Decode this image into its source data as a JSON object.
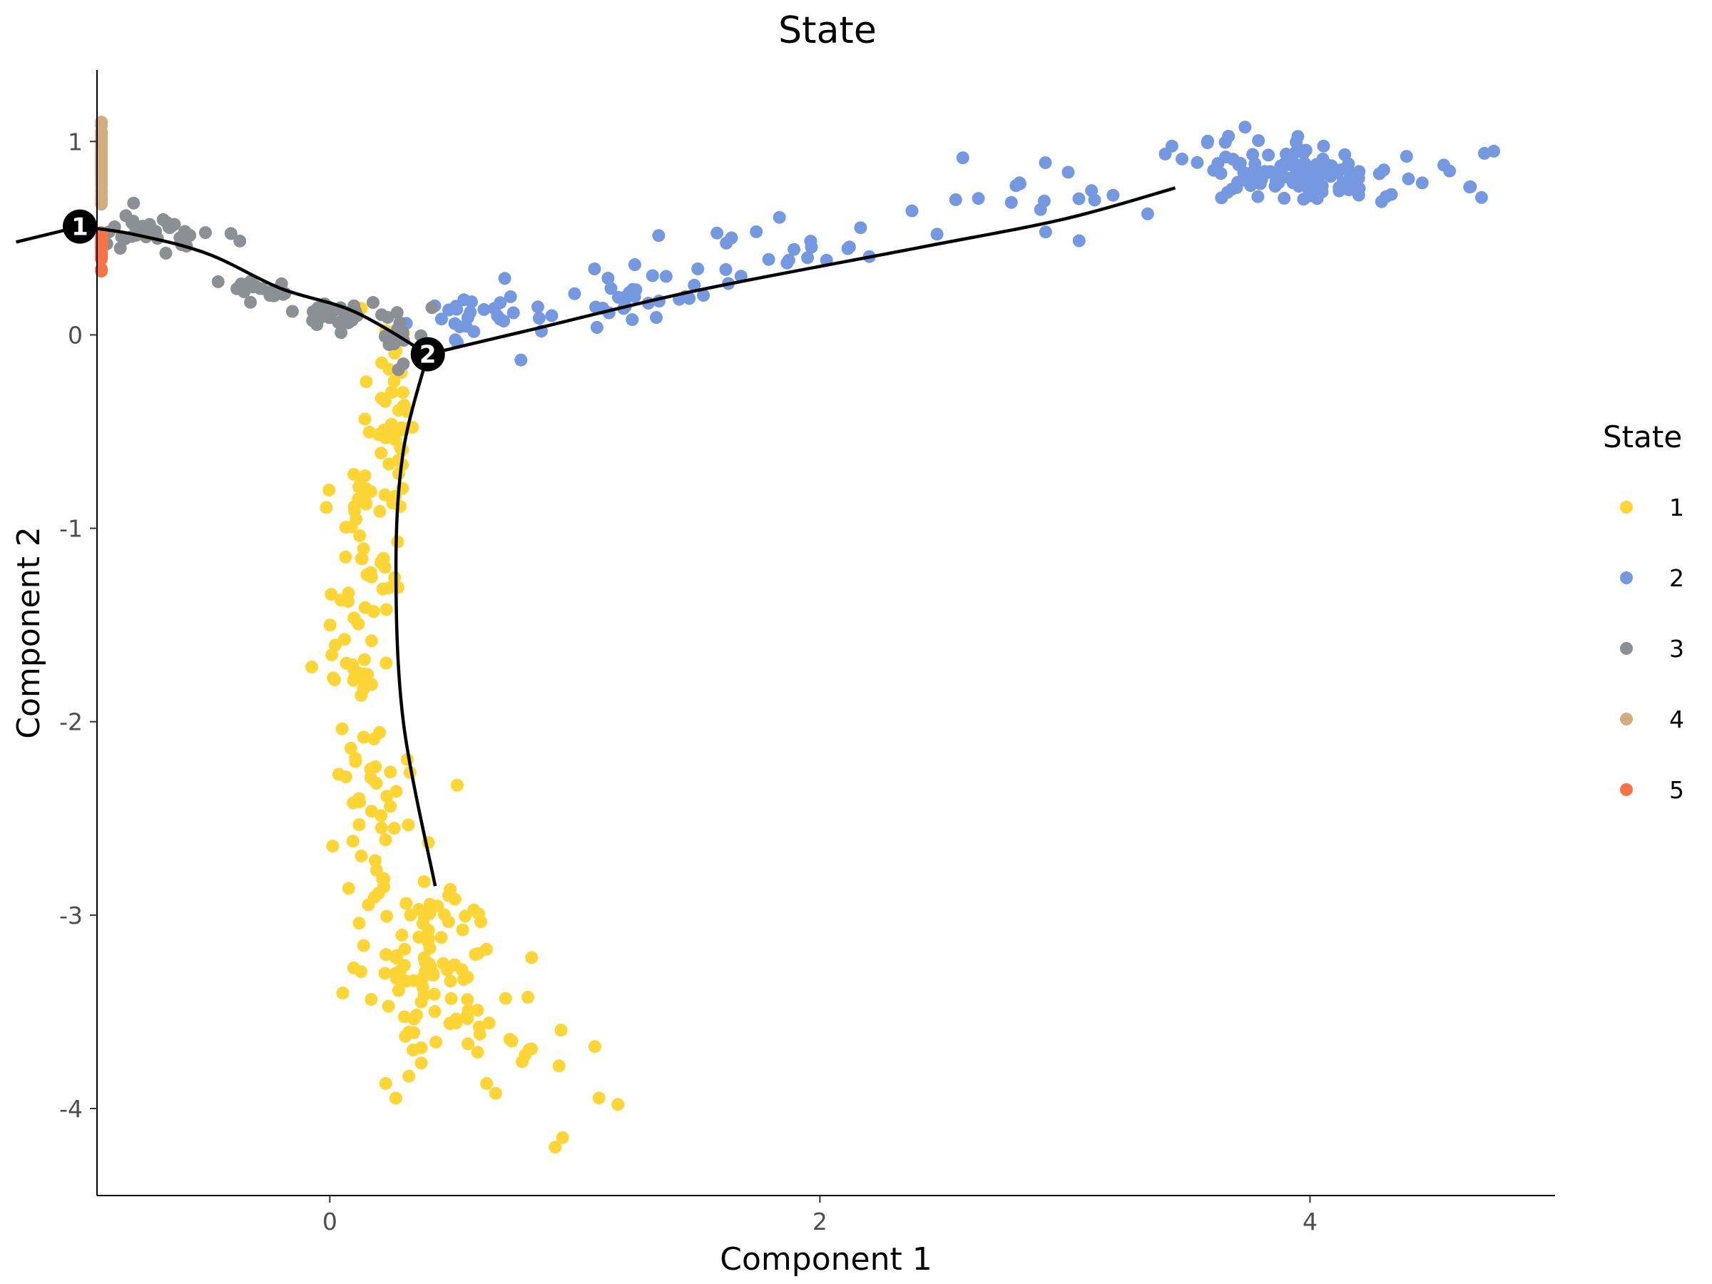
{
  "chart_data": {
    "type": "scatter",
    "title": "State",
    "xlabel": "Component 1",
    "ylabel": "Component 2",
    "xlim": [
      -0.95,
      5.0
    ],
    "ylim": [
      -4.45,
      1.37
    ],
    "x_ticks": [
      0,
      2,
      4
    ],
    "y_ticks": [
      1,
      0,
      -1,
      -2,
      -3,
      -4
    ],
    "grid": false,
    "legend": {
      "title": "State",
      "placement": "right"
    },
    "series": [
      {
        "name": "1",
        "color": "#FDD535",
        "clusters": [
          {
            "cx": 0.25,
            "cy": -0.35,
            "sx": 0.05,
            "sy": 0.25,
            "n": 40
          },
          {
            "cx": 0.15,
            "cy": -1.0,
            "sx": 0.07,
            "sy": 0.3,
            "n": 45
          },
          {
            "cx": 0.1,
            "cy": -1.8,
            "sx": 0.08,
            "sy": 0.35,
            "n": 40
          },
          {
            "cx": 0.23,
            "cy": -2.6,
            "sx": 0.09,
            "sy": 0.35,
            "n": 35
          },
          {
            "cx": 0.42,
            "cy": -3.3,
            "sx": 0.13,
            "sy": 0.25,
            "n": 90
          },
          {
            "cx": 0.8,
            "cy": -3.55,
            "sx": 0.18,
            "sy": 0.25,
            "n": 20
          }
        ],
        "points": [
          [
            0.92,
            -4.2
          ],
          [
            0.95,
            -4.15
          ]
        ]
      },
      {
        "name": "2",
        "color": "#7499E0",
        "clusters": [
          {
            "cx": 0.6,
            "cy": 0.08,
            "sx": 0.12,
            "sy": 0.06,
            "n": 25
          },
          {
            "cx": 1.2,
            "cy": 0.2,
            "sx": 0.2,
            "sy": 0.12,
            "n": 30
          },
          {
            "cx": 1.8,
            "cy": 0.42,
            "sx": 0.3,
            "sy": 0.1,
            "n": 25
          },
          {
            "cx": 2.8,
            "cy": 0.68,
            "sx": 0.45,
            "sy": 0.09,
            "n": 20
          },
          {
            "cx": 3.95,
            "cy": 0.85,
            "sx": 0.2,
            "sy": 0.08,
            "n": 120
          },
          {
            "cx": 4.45,
            "cy": 0.8,
            "sx": 0.2,
            "sy": 0.08,
            "n": 12
          }
        ],
        "points": [
          [
            0.78,
            -0.13
          ],
          [
            2.92,
            0.89
          ],
          [
            4.75,
            0.95
          ],
          [
            4.7,
            0.71
          ]
        ]
      },
      {
        "name": "3",
        "color": "#8B9095",
        "clusters": [
          {
            "cx": -0.72,
            "cy": 0.53,
            "sx": 0.12,
            "sy": 0.05,
            "n": 40
          },
          {
            "cx": -0.3,
            "cy": 0.23,
            "sx": 0.1,
            "sy": 0.03,
            "n": 20
          },
          {
            "cx": 0.07,
            "cy": 0.11,
            "sx": 0.12,
            "sy": 0.03,
            "n": 30
          },
          {
            "cx": 0.28,
            "cy": 0.01,
            "sx": 0.05,
            "sy": 0.03,
            "n": 12
          }
        ],
        "points": [
          [
            0.3,
            -0.15
          ],
          [
            0.28,
            -0.18
          ]
        ]
      },
      {
        "name": "4",
        "color": "#D4AD7E",
        "clusters": [
          {
            "cx": -1.45,
            "cy": 0.93,
            "sx": 0.08,
            "sy": 0.06,
            "n": 80
          },
          {
            "cx": -1.27,
            "cy": 0.8,
            "sx": 0.07,
            "sy": 0.05,
            "n": 25
          }
        ],
        "points": [
          [
            -1.35,
            1.1
          ],
          [
            -1.4,
            1.1
          ],
          [
            -1.2,
            0.68
          ],
          [
            -1.15,
            0.7
          ]
        ]
      },
      {
        "name": "5",
        "color": "#FB7246",
        "clusters": [
          {
            "cx": -1.42,
            "cy": 0.45,
            "sx": 0.05,
            "sy": 0.03,
            "n": 100
          }
        ],
        "points": [
          [
            -1.45,
            0.33
          ],
          [
            -1.38,
            0.34
          ]
        ]
      }
    ],
    "trajectory": [
      [
        [
          -1.28,
          0.48
        ],
        [
          -1.02,
          0.56
        ]
      ],
      [
        [
          -1.02,
          0.56
        ],
        [
          -0.8,
          0.52
        ],
        [
          -0.5,
          0.42
        ],
        [
          -0.2,
          0.24
        ],
        [
          0.1,
          0.12
        ],
        [
          0.4,
          -0.1
        ]
      ],
      [
        [
          0.4,
          -0.1
        ],
        [
          0.8,
          0.02
        ],
        [
          1.5,
          0.23
        ],
        [
          2.4,
          0.45
        ],
        [
          3.0,
          0.6
        ],
        [
          3.45,
          0.76
        ]
      ],
      [
        [
          0.4,
          -0.1
        ],
        [
          0.3,
          -0.6
        ],
        [
          0.27,
          -1.2
        ],
        [
          0.3,
          -2.0
        ],
        [
          0.43,
          -2.85
        ]
      ]
    ],
    "branch_points": [
      {
        "label": "1",
        "x": -1.02,
        "y": 0.56
      },
      {
        "label": "2",
        "x": 0.4,
        "y": -0.1
      }
    ]
  }
}
